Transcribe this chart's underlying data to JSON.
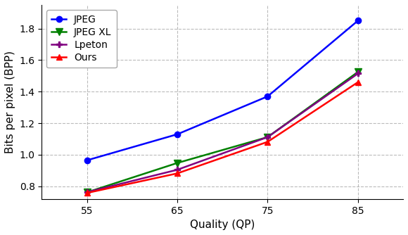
{
  "x": [
    55,
    65,
    75,
    85
  ],
  "series_order": [
    "JPEG",
    "JPEG XL",
    "Lpeton",
    "Ours"
  ],
  "series": {
    "JPEG": {
      "y": [
        0.965,
        1.13,
        1.37,
        1.85
      ],
      "color": "#0000FF",
      "marker": "o",
      "linestyle": "-",
      "linewidth": 1.8,
      "markersize": 6,
      "markerfacecolor": "#0000FF"
    },
    "JPEG XL": {
      "y": [
        0.762,
        0.948,
        1.112,
        1.525
      ],
      "color": "#008000",
      "marker": "v",
      "linestyle": "-",
      "linewidth": 1.8,
      "markersize": 7,
      "markerfacecolor": "#008000"
    },
    "Lpeton": {
      "y": [
        0.763,
        0.905,
        1.112,
        1.515
      ],
      "color": "#800080",
      "marker": "P",
      "linestyle": "-",
      "linewidth": 1.8,
      "markersize": 6,
      "markerfacecolor": "#800080"
    },
    "Ours": {
      "y": [
        0.758,
        0.882,
        1.082,
        1.46
      ],
      "color": "#FF0000",
      "marker": "^",
      "linestyle": "-",
      "linewidth": 1.8,
      "markersize": 6,
      "markerfacecolor": "#FF0000"
    }
  },
  "xlabel": "Quality (QP)",
  "ylabel": "Bits per pixel (BPP)",
  "xlim": [
    50,
    90
  ],
  "ylim": [
    0.72,
    1.95
  ],
  "yticks": [
    0.8,
    1.0,
    1.2,
    1.4,
    1.6,
    1.8
  ],
  "xticks": [
    55,
    65,
    75,
    85
  ],
  "legend_loc": "upper left",
  "background_color": "#ffffff",
  "xlabel_fontsize": 11,
  "ylabel_fontsize": 11,
  "tick_fontsize": 10,
  "legend_fontsize": 10
}
